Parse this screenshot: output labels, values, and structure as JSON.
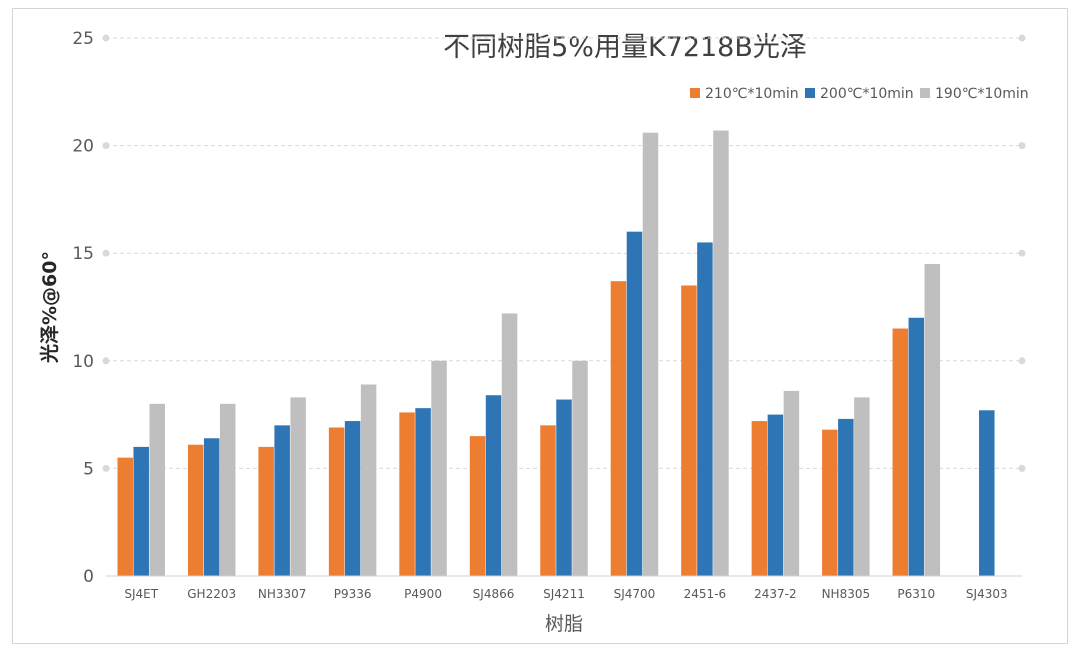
{
  "chart_data": {
    "type": "bar",
    "title": "不同树脂5%用量K7218B光泽",
    "xlabel": "树脂",
    "ylabel": "光泽%@60°",
    "ylim": [
      0,
      25
    ],
    "yticks": [
      0,
      5,
      10,
      15,
      20,
      25
    ],
    "grid": true,
    "legend_position": "top-right",
    "categories": [
      "SJ4ET",
      "GH2203",
      "NH3307",
      "P9336",
      "P4900",
      "SJ4866",
      "SJ4211",
      "SJ4700",
      "2451-6",
      "2437-2",
      "NH8305",
      "P6310",
      "SJ4303"
    ],
    "series": [
      {
        "name": "210℃*10min",
        "color": "#ED7D31",
        "values": [
          5.5,
          6.1,
          6.0,
          6.9,
          7.6,
          6.5,
          7.0,
          13.7,
          13.5,
          7.2,
          6.8,
          11.5,
          null
        ]
      },
      {
        "name": "200℃*10min",
        "color": "#2E75B6",
        "values": [
          6.0,
          6.4,
          7.0,
          7.2,
          7.8,
          8.4,
          8.2,
          16.0,
          15.5,
          7.5,
          7.3,
          12.0,
          7.7
        ]
      },
      {
        "name": "190℃*10min",
        "color": "#BFBFBF",
        "values": [
          8.0,
          8.0,
          8.3,
          8.9,
          10.0,
          12.2,
          10.0,
          20.6,
          20.7,
          8.6,
          8.3,
          14.5,
          null
        ]
      }
    ]
  }
}
